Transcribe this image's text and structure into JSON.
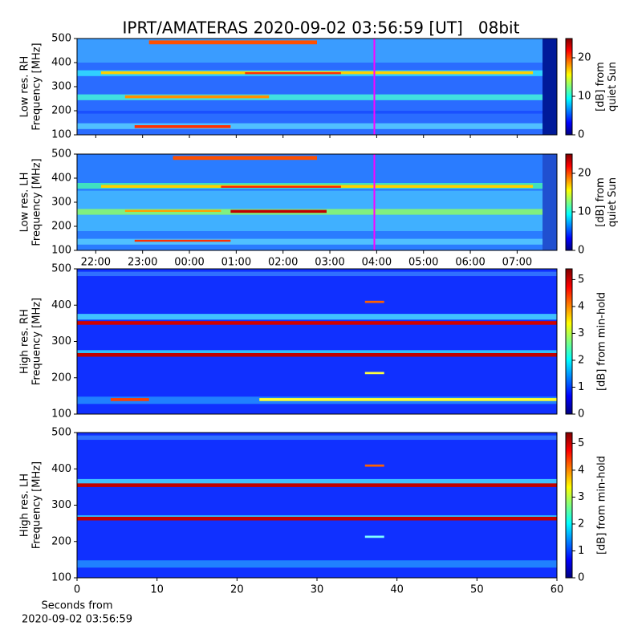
{
  "chart_data": [
    {
      "type": "heatmap",
      "title": "IPRT/AMATERAS 2020-09-02 03:56:59 [UT]   08bit",
      "y_label": [
        "Low res. RH",
        "Frequency [MHz]"
      ],
      "ylim": [
        100,
        500
      ],
      "yticks": [
        100,
        200,
        300,
        400,
        500
      ],
      "xlim": [
        21.6,
        31.85
      ],
      "marker_x": 27.95,
      "marker_color": "#ff00ff",
      "colorbar_label": [
        "[dB] from",
        "quiet Sun"
      ],
      "clim": [
        0,
        25
      ],
      "cticks": [
        0,
        10,
        20
      ]
    },
    {
      "type": "heatmap",
      "y_label": [
        "Low res. LH",
        "Frequency [MHz]"
      ],
      "ylim": [
        100,
        500
      ],
      "yticks": [
        100,
        200,
        300,
        400,
        500
      ],
      "xlim": [
        21.6,
        31.85
      ],
      "marker_x": 27.95,
      "marker_color": "#ff00ff",
      "xticks": [
        {
          "value": 22,
          "label": "22:00"
        },
        {
          "value": 23,
          "label": "23:00"
        },
        {
          "value": 24,
          "label": "00:00"
        },
        {
          "value": 25,
          "label": "01:00"
        },
        {
          "value": 26,
          "label": "02:00"
        },
        {
          "value": 27,
          "label": "03:00"
        },
        {
          "value": 28,
          "label": "04:00"
        },
        {
          "value": 29,
          "label": "05:00"
        },
        {
          "value": 30,
          "label": "06:00"
        },
        {
          "value": 31,
          "label": "07:00"
        }
      ],
      "colorbar_label": [
        "[dB] from",
        "quiet Sun"
      ],
      "clim": [
        0,
        25
      ],
      "cticks": [
        0,
        10,
        20
      ]
    },
    {
      "type": "heatmap",
      "y_label": [
        "High res. RH",
        "Frequency [MHz]"
      ],
      "ylim": [
        100,
        500
      ],
      "yticks": [
        100,
        200,
        300,
        400,
        500
      ],
      "xlim": [
        0,
        60
      ],
      "colorbar_label": [
        "[dB] from min-hold"
      ],
      "clim": [
        0,
        5.4
      ],
      "cticks": [
        0,
        1,
        2,
        3,
        4,
        5
      ]
    },
    {
      "type": "heatmap",
      "y_label": [
        "High res. LH",
        "Frequency [MHz]"
      ],
      "ylim": [
        100,
        500
      ],
      "yticks": [
        100,
        200,
        300,
        400,
        500
      ],
      "xlim": [
        0,
        60
      ],
      "xticks": [
        0,
        10,
        20,
        30,
        40,
        50,
        60
      ],
      "x_label": [
        "Seconds from",
        "2020-09-02 03:56:59"
      ],
      "colorbar_label": [
        "[dB] from min-hold"
      ],
      "clim": [
        0,
        5.4
      ],
      "cticks": [
        0,
        1,
        2,
        3,
        4,
        5
      ]
    }
  ]
}
